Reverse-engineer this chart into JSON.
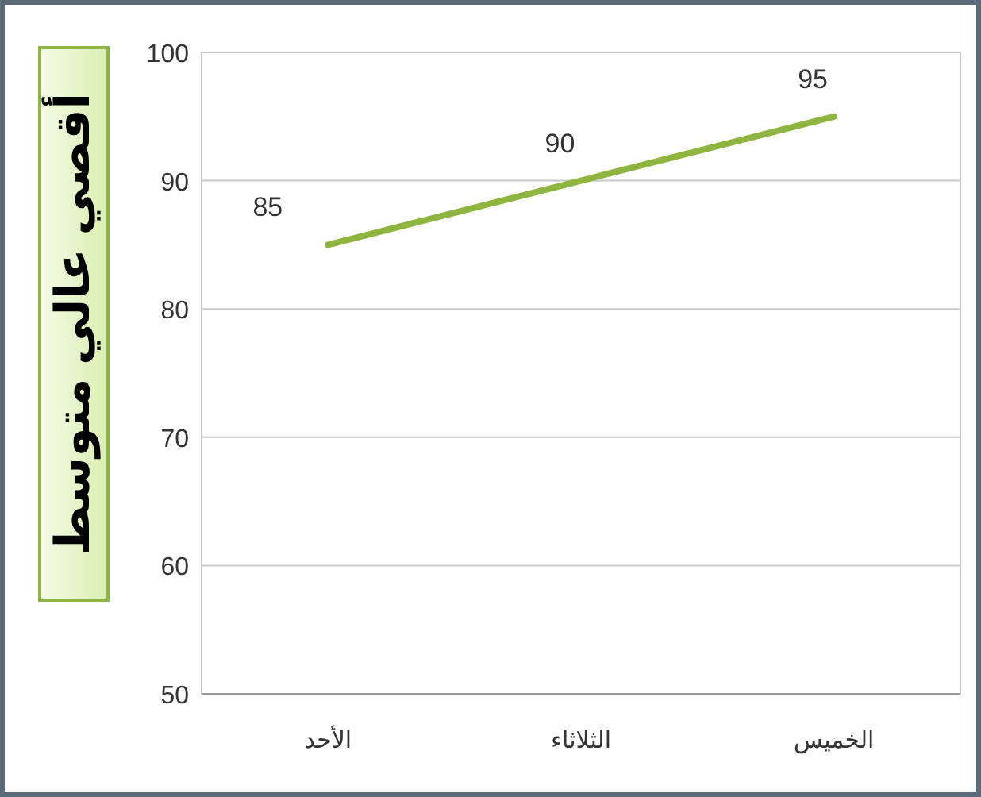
{
  "chart_data": {
    "type": "line",
    "ylabel": "أقصي عالي متوسط",
    "categories": [
      "الأحد",
      "الثلاثاء",
      "الخميس"
    ],
    "series": [
      {
        "color": "#8db53f",
        "values": [
          85,
          90,
          95
        ]
      }
    ],
    "ylim": [
      50,
      100
    ],
    "yticks": [
      50,
      60,
      70,
      80,
      90,
      100
    ],
    "grid": "y",
    "data_labels": true,
    "marker": "none",
    "line_style": "solid"
  }
}
